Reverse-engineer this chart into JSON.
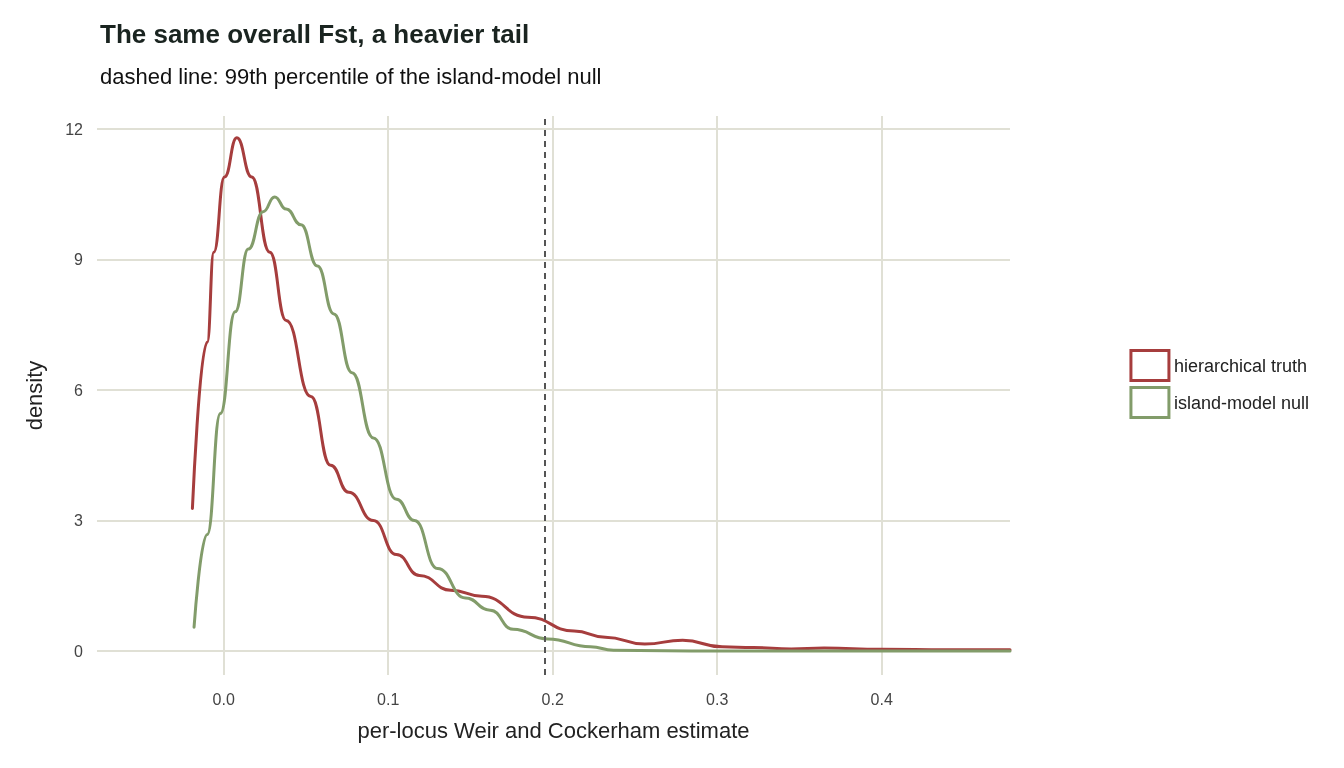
{
  "chart_data": {
    "type": "line",
    "title": "The same overall Fst, a heavier tail",
    "subtitle": "dashed line: 99th percentile of the island-model null",
    "xlabel": "per-locus Weir and Cockerham estimate",
    "ylabel": "density",
    "xlim": [
      -0.077,
      0.478
    ],
    "xticks": [
      {
        "value": 0,
        "label": "0.0"
      },
      0.1,
      0.2,
      0.3,
      0.4
    ],
    "ylim": [
      -0.55,
      12.3
    ],
    "yticks": [
      0,
      3,
      6,
      9,
      12
    ],
    "grid": true,
    "legend": "right",
    "marker": "none",
    "line_style": "solid",
    "ref_lines": [
      {
        "axis": "x",
        "value": 0.195,
        "label": null,
        "color": "#555555",
        "line_style": "dashed"
      }
    ],
    "series": [
      {
        "name": "hierarchical truth",
        "color": "#a63d3d",
        "x": [
          -0.019,
          -0.01,
          -0.006,
          0.0005,
          0.008,
          0.017,
          0.028,
          0.038,
          0.053,
          0.065,
          0.076,
          0.091,
          0.105,
          0.119,
          0.138,
          0.157,
          0.185,
          0.213,
          0.232,
          0.256,
          0.279,
          0.303,
          0.322,
          0.345,
          0.365,
          0.4,
          0.44,
          0.478
        ],
        "values": [
          3.28,
          7.1,
          9.17,
          10.9,
          11.8,
          10.9,
          9.17,
          7.6,
          5.85,
          4.27,
          3.65,
          3.0,
          2.22,
          1.74,
          1.4,
          1.26,
          0.78,
          0.46,
          0.32,
          0.16,
          0.25,
          0.1,
          0.08,
          0.05,
          0.07,
          0.04,
          0.03,
          0.03
        ]
      },
      {
        "name": "island-model null",
        "color": "#829c6a",
        "x": [
          -0.018,
          -0.01,
          -0.002,
          0.007,
          0.015,
          0.024,
          0.031,
          0.038,
          0.047,
          0.057,
          0.067,
          0.078,
          0.091,
          0.105,
          0.116,
          0.13,
          0.147,
          0.162,
          0.176,
          0.197,
          0.223,
          0.237,
          0.3,
          0.4,
          0.478
        ],
        "values": [
          0.55,
          2.68,
          5.46,
          7.8,
          9.24,
          10.1,
          10.44,
          10.16,
          9.8,
          8.85,
          7.75,
          6.4,
          4.9,
          3.49,
          3.0,
          1.9,
          1.22,
          0.94,
          0.5,
          0.28,
          0.1,
          0.02,
          0.0,
          0.0,
          0.0
        ]
      }
    ]
  }
}
